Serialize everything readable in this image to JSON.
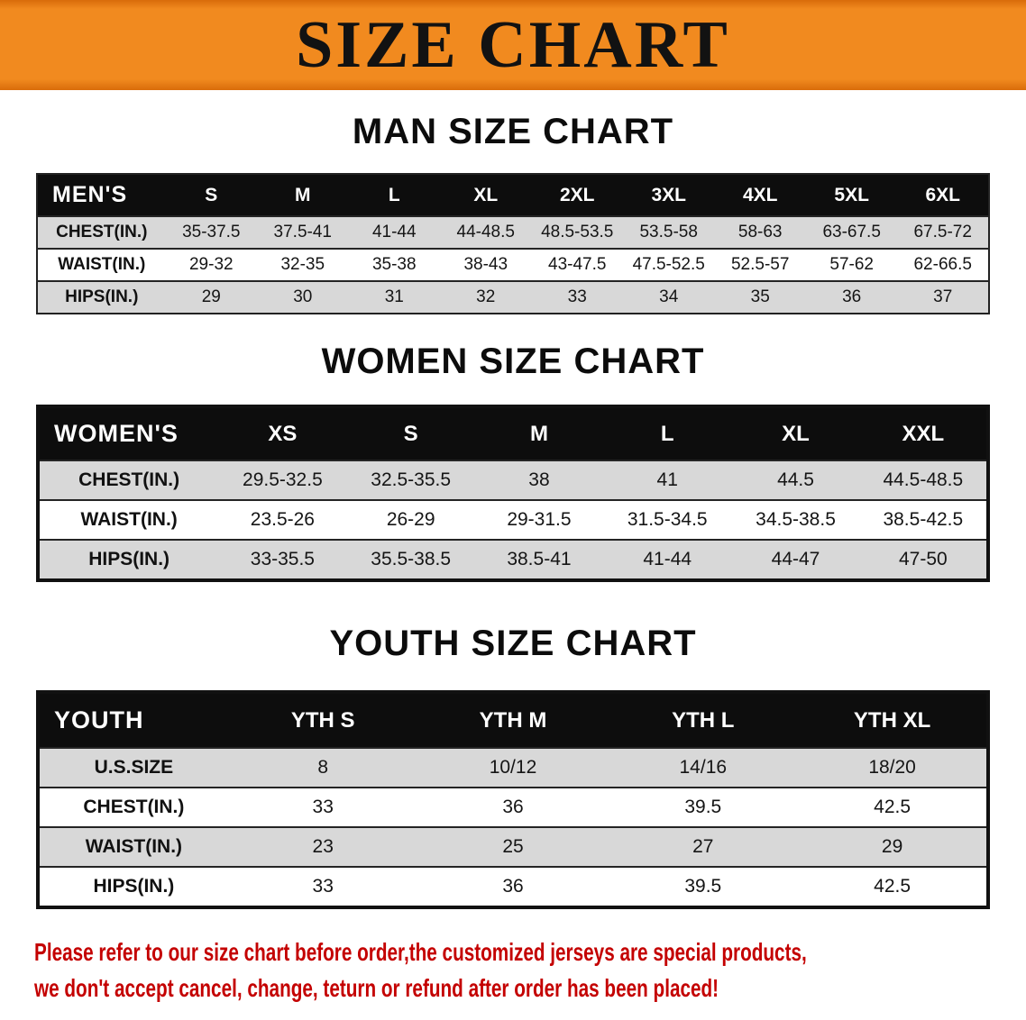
{
  "banner": {
    "title": "SIZE CHART"
  },
  "colors": {
    "banner_bg": "#f18a1f",
    "banner_bg_dark": "#d96c0a",
    "header_bg": "#0d0d0d",
    "header_text": "#ffffff",
    "stripe": "#d8d8d8",
    "disclaimer_text": "#c40000"
  },
  "sections": [
    {
      "heading": "MAN SIZE CHART",
      "table": {
        "style": "light",
        "header": [
          "MEN'S",
          "S",
          "M",
          "L",
          "XL",
          "2XL",
          "3XL",
          "4XL",
          "5XL",
          "6XL"
        ],
        "rows": [
          [
            "CHEST(IN.)",
            "35-37.5",
            "37.5-41",
            "41-44",
            "44-48.5",
            "48.5-53.5",
            "53.5-58",
            "58-63",
            "63-67.5",
            "67.5-72"
          ],
          [
            "WAIST(IN.)",
            "29-32",
            "32-35",
            "35-38",
            "38-43",
            "43-47.5",
            "47.5-52.5",
            "52.5-57",
            "57-62",
            "62-66.5"
          ],
          [
            "HIPS(IN.)",
            "29",
            "30",
            "31",
            "32",
            "33",
            "34",
            "35",
            "36",
            "37"
          ]
        ]
      }
    },
    {
      "heading": "WOMEN SIZE CHART",
      "table": {
        "style": "heavy",
        "header": [
          "WOMEN'S",
          "XS",
          "S",
          "M",
          "L",
          "XL",
          "XXL"
        ],
        "rows": [
          [
            "CHEST(IN.)",
            "29.5-32.5",
            "32.5-35.5",
            "38",
            "41",
            "44.5",
            "44.5-48.5"
          ],
          [
            "WAIST(IN.)",
            "23.5-26",
            "26-29",
            "29-31.5",
            "31.5-34.5",
            "34.5-38.5",
            "38.5-42.5"
          ],
          [
            "HIPS(IN.)",
            "33-35.5",
            "35.5-38.5",
            "38.5-41",
            "41-44",
            "44-47",
            "47-50"
          ]
        ]
      }
    },
    {
      "heading": "YOUTH SIZE CHART",
      "table": {
        "style": "heavy",
        "header": [
          "YOUTH",
          "YTH S",
          "YTH M",
          "YTH L",
          "YTH XL"
        ],
        "rows": [
          [
            "U.S.SIZE",
            "8",
            "10/12",
            "14/16",
            "18/20"
          ],
          [
            "CHEST(IN.)",
            "33",
            "36",
            "39.5",
            "42.5"
          ],
          [
            "WAIST(IN.)",
            "23",
            "25",
            "27",
            "29"
          ],
          [
            "HIPS(IN.)",
            "33",
            "36",
            "39.5",
            "42.5"
          ]
        ]
      }
    }
  ],
  "disclaimer": {
    "line1": "Please refer to our size chart before order,the customized jerseys are special products,",
    "line2": "we don't accept cancel, change, teturn or refund after order has been placed!"
  }
}
